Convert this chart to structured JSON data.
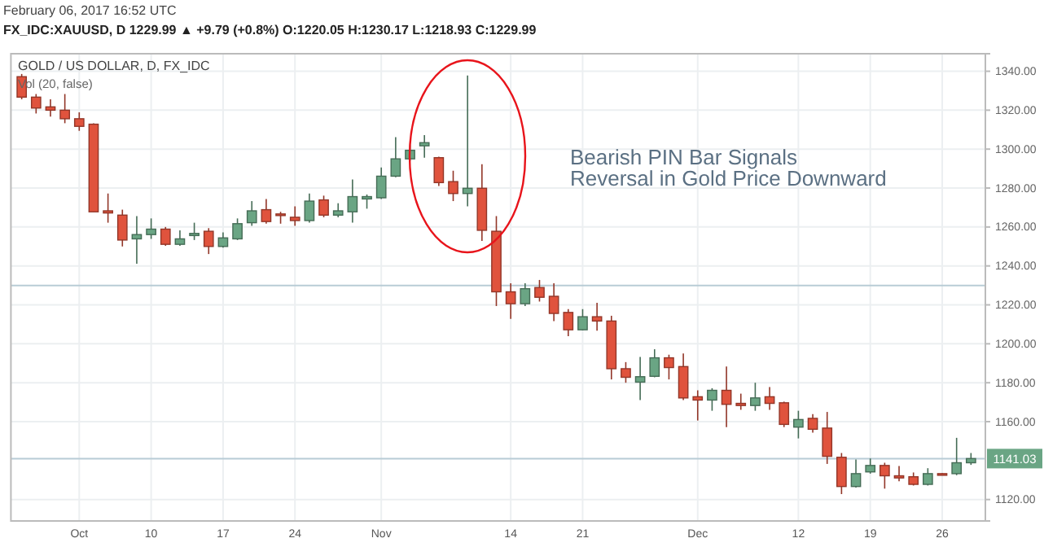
{
  "chart_data": {
    "type": "candlestick",
    "title": "GOLD / US DOLLAR, D, FX_IDC",
    "subtitle": "February 06, 2017 16:52 UTC",
    "annotations": [
      "FX_IDC:XAUUSD, D 1229.99 ▲ +9.79 (+0.8%) O:1220.05 H:1230.17 L:1218.93 C:1229.99",
      "Vol (20, false)",
      "Bearish PIN Bar Signals\nReversal in Gold Price Downward"
    ],
    "categories": [
      null,
      null,
      null,
      null,
      "Oct",
      null,
      null,
      null,
      null,
      "10",
      null,
      null,
      null,
      null,
      "17",
      null,
      null,
      null,
      null,
      "24",
      null,
      null,
      null,
      null,
      null,
      "Nov",
      null,
      null,
      null,
      null,
      null,
      null,
      null,
      null,
      "14",
      null,
      null,
      null,
      null,
      "21",
      null,
      null,
      null,
      null,
      null,
      null,
      null,
      "Dec",
      null,
      null,
      null,
      null,
      null,
      null,
      "12",
      null,
      null,
      null,
      null,
      "19",
      null,
      null,
      null,
      null,
      "26",
      null,
      null
    ],
    "ohlc": [
      [
        1337.2,
        1338.6,
        1325.6,
        1326.7
      ],
      [
        1326.7,
        1328.3,
        1318.3,
        1321.1
      ],
      [
        1321.7,
        1325.6,
        1316.7,
        1320
      ],
      [
        1320,
        1328.3,
        1313.3,
        1315.6
      ],
      [
        1315.6,
        1318.9,
        1309.4,
        1311.7
      ],
      [
        1312.8,
        1313.3,
        1267.8,
        1267.8
      ],
      [
        1268.3,
        1277.2,
        1262.2,
        1267.2
      ],
      [
        1266.1,
        1268.9,
        1250,
        1253.3
      ],
      [
        1253.9,
        1265.6,
        1241.1,
        1256.1
      ],
      [
        1256.1,
        1264.4,
        1253.9,
        1258.9
      ],
      [
        1258.9,
        1260,
        1250.3,
        1251.1
      ],
      [
        1251.1,
        1258.3,
        1250.3,
        1253.9
      ],
      [
        1255.6,
        1262.2,
        1253.3,
        1256.7
      ],
      [
        1257.8,
        1259.4,
        1246.1,
        1250
      ],
      [
        1250,
        1257.2,
        1249.4,
        1254.4
      ],
      [
        1253.9,
        1264.4,
        1253.3,
        1261.7
      ],
      [
        1262.2,
        1273.3,
        1260.6,
        1268.3
      ],
      [
        1268.9,
        1274.4,
        1261.7,
        1262.8
      ],
      [
        1266.7,
        1267.8,
        1261.7,
        1266.1
      ],
      [
        1265,
        1270.6,
        1260.6,
        1263.3
      ],
      [
        1263.3,
        1277.2,
        1262.2,
        1273.3
      ],
      [
        1273.9,
        1276.1,
        1265,
        1266.1
      ],
      [
        1266.1,
        1272.2,
        1265,
        1268.3
      ],
      [
        1267.8,
        1284.4,
        1262.2,
        1275.6
      ],
      [
        1274.4,
        1276.7,
        1269.4,
        1275.6
      ],
      [
        1275,
        1290.6,
        1274.4,
        1286.1
      ],
      [
        1286.1,
        1306.1,
        1285.6,
        1295
      ],
      [
        1295,
        1302,
        1293.9,
        1299.4
      ],
      [
        1301.7,
        1307.2,
        1295.6,
        1303.3
      ],
      [
        1295.6,
        1296.1,
        1281.1,
        1282.8
      ],
      [
        1283.3,
        1288.9,
        1273.3,
        1277.2
      ],
      [
        1277.2,
        1337.8,
        1270.6,
        1279.9
      ],
      [
        1279.9,
        1292.2,
        1252.8,
        1258.3
      ],
      [
        1257.8,
        1265.6,
        1219.4,
        1226.7
      ],
      [
        1226.7,
        1231.1,
        1212.8,
        1220.6
      ],
      [
        1220.6,
        1231.1,
        1219.4,
        1228.3
      ],
      [
        1228.9,
        1232.8,
        1221.7,
        1223.9
      ],
      [
        1224.4,
        1231.1,
        1211.7,
        1215.6
      ],
      [
        1216.1,
        1217.8,
        1203.9,
        1207.2
      ],
      [
        1207.2,
        1217.8,
        1206.9,
        1213.9
      ],
      [
        1213.9,
        1221.1,
        1206.7,
        1211.7
      ],
      [
        1211.7,
        1214.4,
        1181.7,
        1187.2
      ],
      [
        1187.2,
        1190.6,
        1180,
        1182.8
      ],
      [
        1180.3,
        1193.3,
        1171.1,
        1183.1
      ],
      [
        1183.3,
        1197.2,
        1182.8,
        1192.8
      ],
      [
        1192.8,
        1194.4,
        1181.7,
        1187.8
      ],
      [
        1188.3,
        1195,
        1171.1,
        1172.2
      ],
      [
        1172.8,
        1176.1,
        1160.6,
        1171.1
      ],
      [
        1171.1,
        1177.2,
        1165.6,
        1176.1
      ],
      [
        1176.1,
        1188.3,
        1157.2,
        1168.9
      ],
      [
        1169.4,
        1174.4,
        1166.1,
        1168.3
      ],
      [
        1168.3,
        1180,
        1165.6,
        1172.2
      ],
      [
        1172.8,
        1177.8,
        1166.1,
        1169.4
      ],
      [
        1169.7,
        1170.3,
        1157.2,
        1158.6
      ],
      [
        1157.2,
        1165.6,
        1151.4,
        1161.1
      ],
      [
        1161.7,
        1163.9,
        1154.4,
        1156.1
      ],
      [
        1156.7,
        1165,
        1138.3,
        1142.2
      ],
      [
        1141.7,
        1143.9,
        1122.8,
        1126.7
      ],
      [
        1126.7,
        1140.6,
        1126.1,
        1133.3
      ],
      [
        1134.2,
        1141.1,
        1133.3,
        1137.5
      ],
      [
        1137.5,
        1138.9,
        1125.6,
        1132.2
      ],
      [
        1132.2,
        1137.2,
        1129.4,
        1131.1
      ],
      [
        1131.7,
        1133.9,
        1127.2,
        1127.8
      ],
      [
        1127.8,
        1136.1,
        1127.2,
        1133.3
      ],
      [
        1133.3,
        1133.6,
        1132.4,
        1132.5
      ],
      [
        1133.3,
        1151.7,
        1132.5,
        1138.9
      ],
      [
        1138.9,
        1143.9,
        1137.8,
        1141.03
      ]
    ],
    "colors": [
      "#e0533d",
      "#e0533d",
      "#e0533d",
      "#e0533d",
      "#e0533d",
      "#e0533d",
      "#e0533d",
      "#e0533d",
      "#6aa584",
      "#6aa584",
      "#e0533d",
      "#6aa584",
      "#6aa584",
      "#e0533d",
      "#6aa584",
      "#6aa584",
      "#6aa584",
      "#e0533d",
      "#e0533d",
      "#e0533d",
      "#6aa584",
      "#e0533d",
      "#6aa584",
      "#6aa584",
      "#6aa584",
      "#6aa584",
      "#6aa584",
      "#6aa584",
      "#6aa584",
      "#e0533d",
      "#e0533d",
      "#6aa584",
      "#e0533d",
      "#e0533d",
      "#e0533d",
      "#6aa584",
      "#e0533d",
      "#e0533d",
      "#e0533d",
      "#6aa584",
      "#e0533d",
      "#e0533d",
      "#e0533d",
      "#6aa584",
      "#6aa584",
      "#e0533d",
      "#e0533d",
      "#e0533d",
      "#6aa584",
      "#e0533d",
      "#e0533d",
      "#6aa584",
      "#e0533d",
      "#e0533d",
      "#6aa584",
      "#e0533d",
      "#e0533d",
      "#e0533d",
      "#6aa584",
      "#6aa584",
      "#e0533d",
      "#e0533d",
      "#e0533d",
      "#6aa584",
      "#e0533d",
      "#6aa584",
      "#6aa584"
    ],
    "ylim": [
      1109,
      1349
    ],
    "yticks": [
      {
        "value": 1120,
        "label": "1120.00"
      },
      {
        "value": 1160,
        "label": "1160.00"
      },
      {
        "value": 1180,
        "label": "1180.00"
      },
      {
        "value": 1200,
        "label": "1200.00"
      },
      {
        "value": 1220,
        "label": "1220.00"
      },
      {
        "value": 1240,
        "label": "1240.00"
      },
      {
        "value": 1260,
        "label": "1260.00"
      },
      {
        "value": 1280,
        "label": "1280.00"
      },
      {
        "value": 1300,
        "label": "1300.00"
      },
      {
        "value": 1320,
        "label": "1320.00"
      },
      {
        "value": 1340,
        "label": "1340.00"
      }
    ],
    "grid": true,
    "ref_lines": [
      {
        "axis": "y",
        "value": 1229.99,
        "label": null,
        "color": "#b8ccd6"
      },
      {
        "axis": "y",
        "value": 1141.03,
        "label": "1141.03",
        "color": "#b8ccd6"
      }
    ]
  }
}
